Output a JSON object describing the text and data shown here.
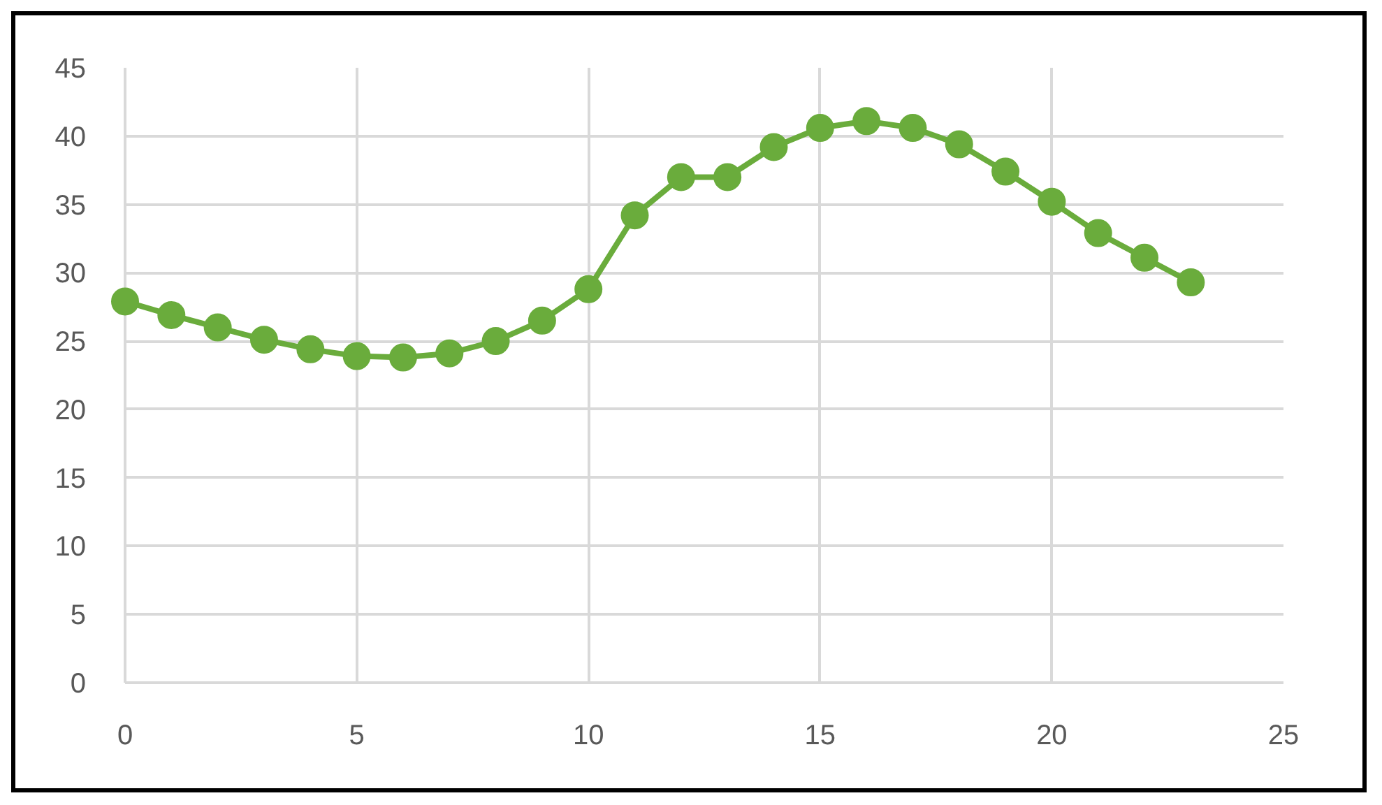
{
  "chart_data": {
    "type": "line",
    "x": [
      0,
      1,
      2,
      3,
      4,
      5,
      6,
      7,
      8,
      9,
      10,
      11,
      12,
      13,
      14,
      15,
      16,
      17,
      18,
      19,
      20,
      21,
      22,
      23
    ],
    "values": [
      27.9,
      26.9,
      26.0,
      25.1,
      24.4,
      23.9,
      23.8,
      24.1,
      25.0,
      26.5,
      28.8,
      34.2,
      37.0,
      37.0,
      39.2,
      40.6,
      41.1,
      40.6,
      39.4,
      37.4,
      35.2,
      32.9,
      31.1,
      29.3
    ],
    "color": "#6aac3c",
    "xlim": [
      0,
      25
    ],
    "ylim": [
      0,
      45
    ],
    "xticks": [
      0,
      5,
      10,
      15,
      20,
      25
    ],
    "yticks": [
      0,
      5,
      10,
      15,
      20,
      25,
      30,
      35,
      40,
      45
    ],
    "grid": true,
    "marker": "circle",
    "line_style": "solid"
  }
}
